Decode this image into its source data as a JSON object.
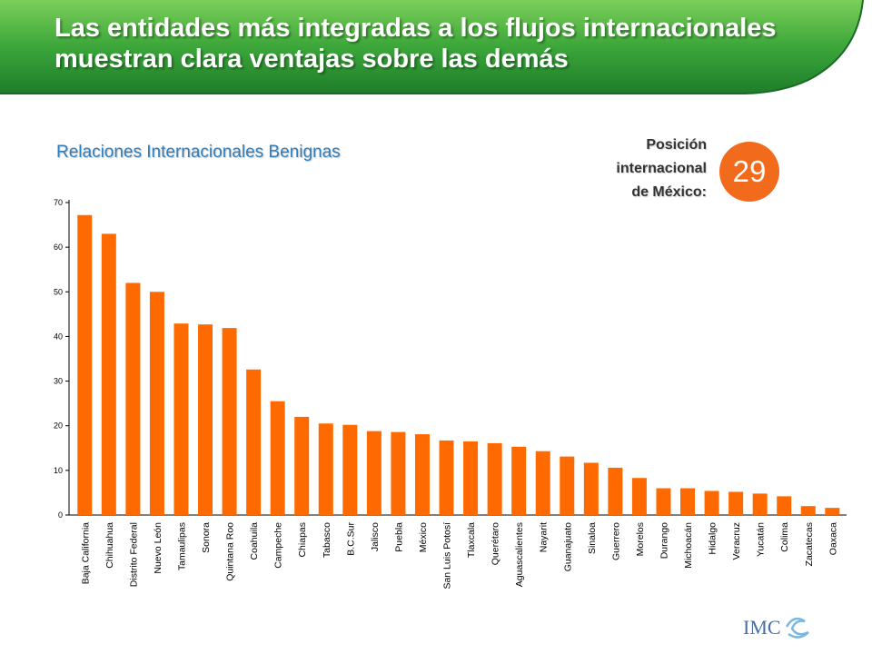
{
  "slide": {
    "title": "Las entidades más integradas a los flujos internacionales muestran clara ventajas sobre las demás"
  },
  "rank": {
    "label_lines": [
      "Posición",
      "internacional",
      "de México:"
    ],
    "value": "29"
  },
  "logo": {
    "text": "IMC"
  },
  "colors": {
    "bar": "#ff6a00",
    "banner": "#3ca63a",
    "title_accent": "#2f7fbe",
    "badge": "#f26a1b"
  },
  "chart_data": {
    "type": "bar",
    "title": "Relaciones Internacionales Benignas",
    "xlabel": "",
    "ylabel": "",
    "ylim": [
      0,
      70
    ],
    "yticks": [
      0,
      10,
      20,
      30,
      40,
      50,
      60,
      70
    ],
    "grid": false,
    "categories": [
      "Baja California",
      "Chihuahua",
      "Distrito Federal",
      "Nuevo León",
      "Tamaulipas",
      "Sonora",
      "Quintana Roo",
      "Coahuila",
      "Campeche",
      "Chiapas",
      "Tabasco",
      "B.C.Sur",
      "Jalisco",
      "Puebla",
      "México",
      "San Luis Potosí",
      "Tlaxcala",
      "Querétaro",
      "Aguascalientes",
      "Nayarit",
      "Guanajuato",
      "Sinaloa",
      "Guerrero",
      "Morelos",
      "Durango",
      "Michoacán",
      "Hidalgo",
      "Veracruz",
      "Yucatán",
      "Colima",
      "Zacatecas",
      "Oaxaca"
    ],
    "values": [
      67.2,
      63.0,
      52.0,
      50.0,
      42.9,
      42.7,
      41.9,
      32.6,
      25.5,
      22.0,
      20.5,
      20.2,
      18.8,
      18.6,
      18.1,
      16.7,
      16.5,
      16.1,
      15.3,
      14.3,
      13.1,
      11.7,
      10.6,
      8.3,
      6.0,
      6.0,
      5.4,
      5.2,
      4.8,
      4.2,
      2.0,
      1.6
    ]
  }
}
